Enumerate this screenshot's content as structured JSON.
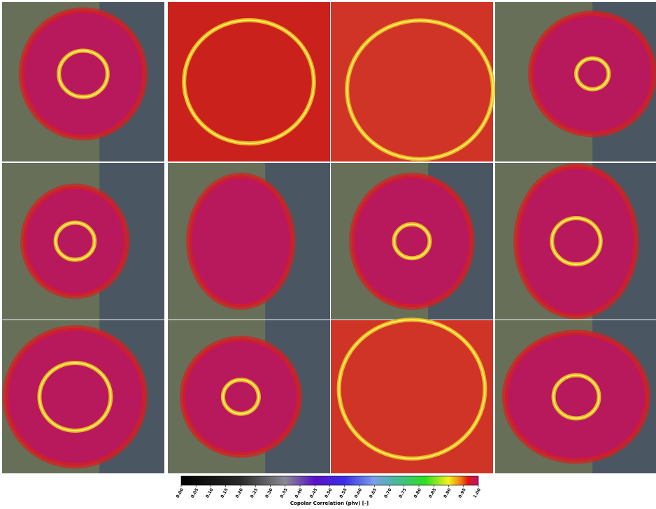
{
  "colorbar": {
    "label": "Copolar Correlation (phv) [-]",
    "lim": [
      0,
      1
    ],
    "ticks": [
      {
        "value": 0,
        "label": "0.00"
      },
      {
        "value": 0.05,
        "label": "0.05"
      },
      {
        "value": 0.1,
        "label": "0.10"
      },
      {
        "value": 0.15,
        "label": "0.15"
      },
      {
        "value": 0.2,
        "label": "0.20"
      },
      {
        "value": 0.25,
        "label": "0.25"
      },
      {
        "value": 0.3,
        "label": "0.30"
      },
      {
        "value": 0.35,
        "label": "0.35"
      },
      {
        "value": 0.4,
        "label": "0.40"
      },
      {
        "value": 0.45,
        "label": "0.45"
      },
      {
        "value": 0.5,
        "label": "0.50"
      },
      {
        "value": 0.55,
        "label": "0.55"
      },
      {
        "value": 0.6,
        "label": "0.60"
      },
      {
        "value": 0.65,
        "label": "0.65"
      },
      {
        "value": 0.7,
        "label": "0.70"
      },
      {
        "value": 0.75,
        "label": "0.75"
      },
      {
        "value": 0.8,
        "label": "0.80"
      },
      {
        "value": 0.85,
        "label": "0.85"
      },
      {
        "value": 0.9,
        "label": "0.90"
      },
      {
        "value": 0.95,
        "label": "0.95"
      },
      {
        "value": 1,
        "label": "1.00"
      }
    ]
  }
}
